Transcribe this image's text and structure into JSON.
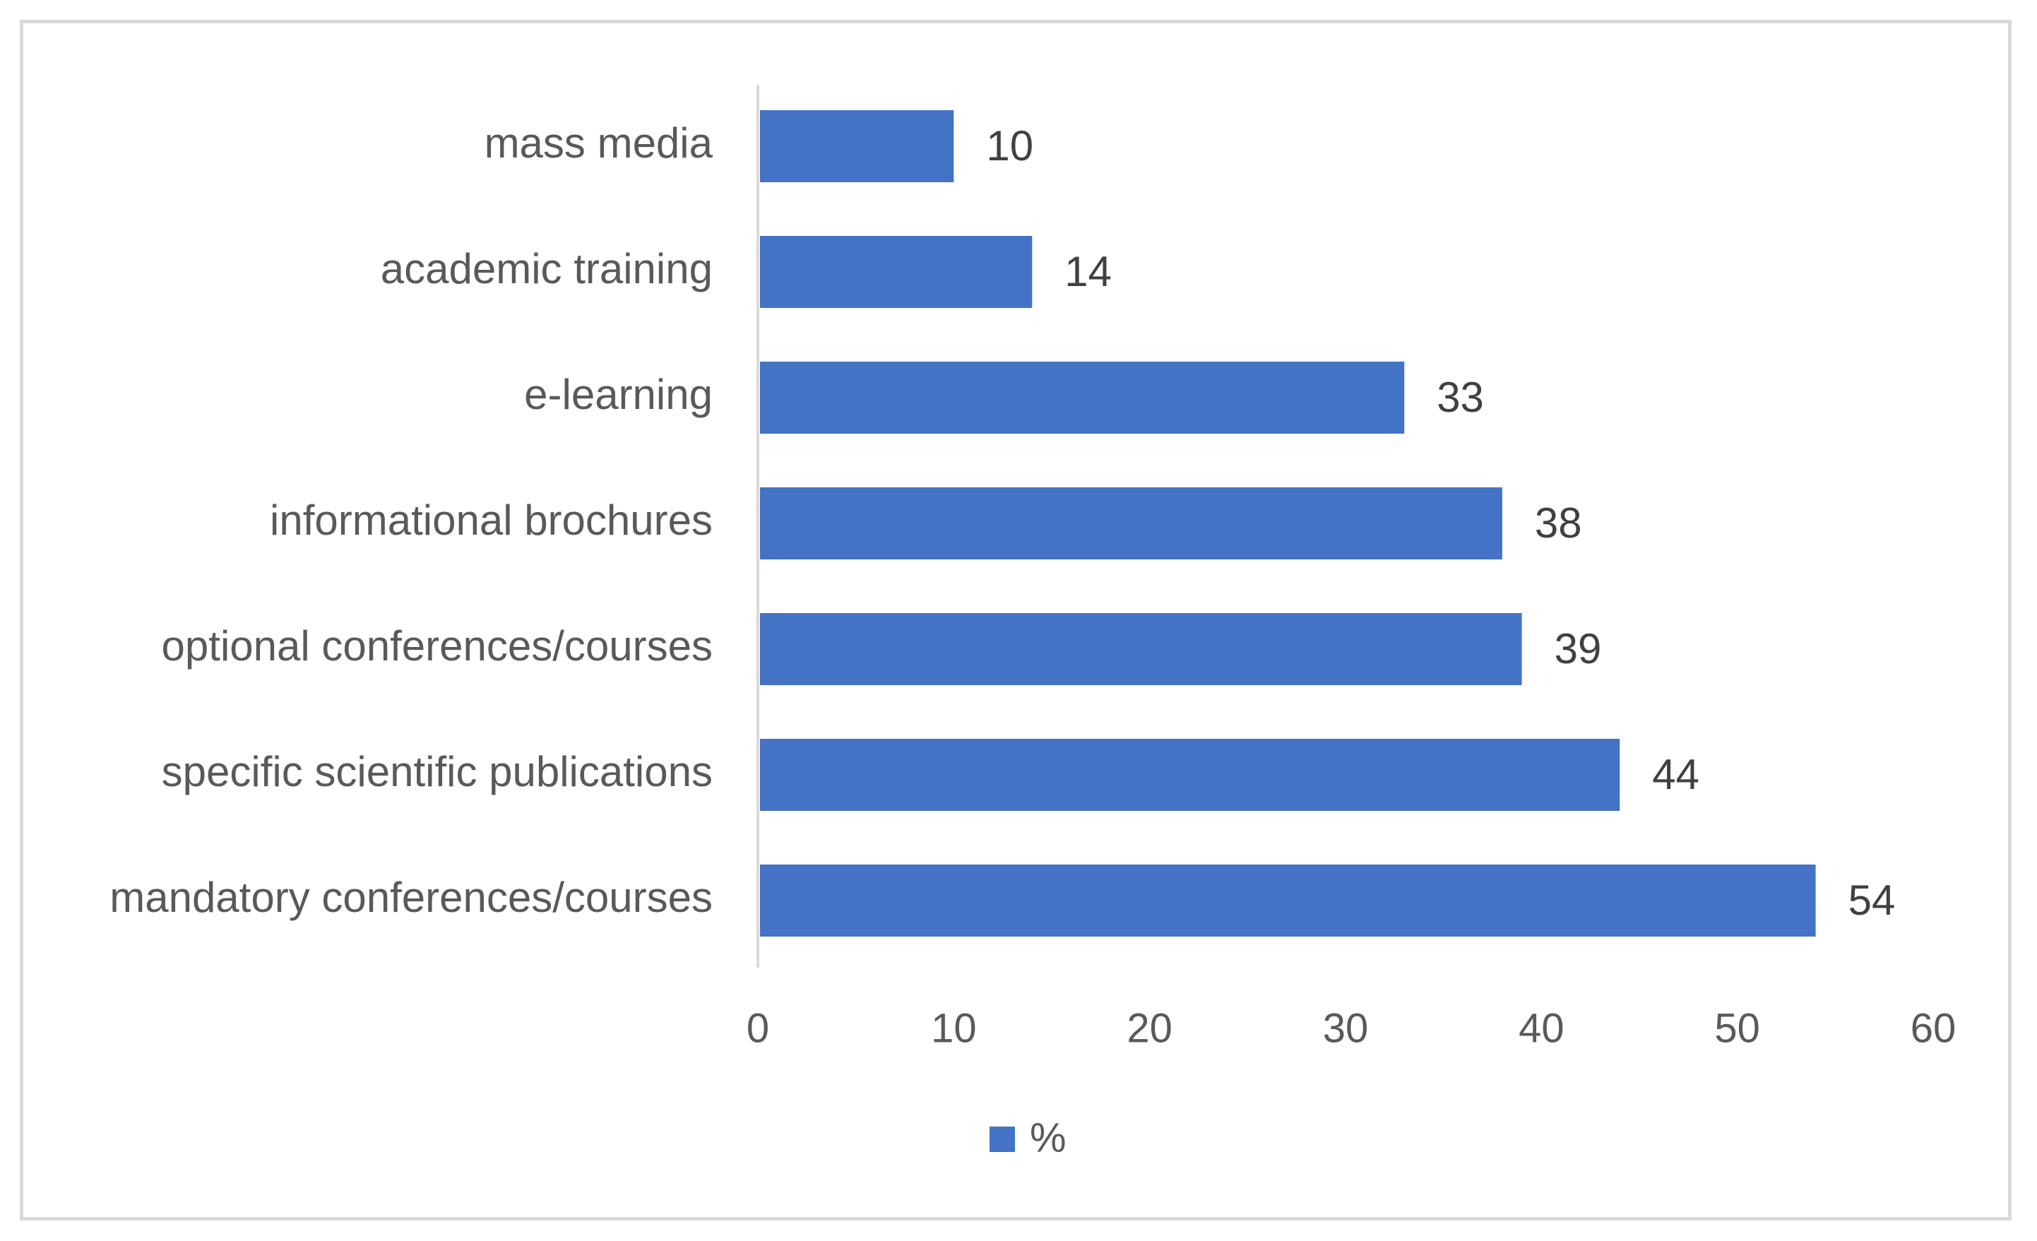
{
  "chart_data": {
    "type": "bar",
    "orientation": "horizontal",
    "title": "",
    "xlabel": "",
    "ylabel": "",
    "categories": [
      "mass media",
      "academic training",
      "e-learning",
      "informational brochures",
      "optional conferences/courses",
      "specific scientific publications",
      "mandatory conferences/courses"
    ],
    "series": [
      {
        "name": "%",
        "values": [
          10,
          14,
          33,
          38,
          39,
          44,
          54
        ],
        "color": "#4472C4"
      }
    ],
    "data_labels": [
      "10",
      "14",
      "33",
      "38",
      "39",
      "44",
      "54"
    ],
    "xlim": [
      0,
      60
    ],
    "x_ticks": [
      0,
      10,
      20,
      30,
      40,
      50,
      60
    ],
    "x_tick_labels": [
      "0",
      "10",
      "20",
      "30",
      "40",
      "50",
      "60"
    ],
    "grid": false,
    "legend": {
      "position": "bottom",
      "entries": [
        "%"
      ]
    },
    "colors": {
      "bar": "#4472C4",
      "axis": "#d9d9d9",
      "frame": "#d9d9d9",
      "label_text": "#595959",
      "data_label_text": "#404040"
    }
  }
}
